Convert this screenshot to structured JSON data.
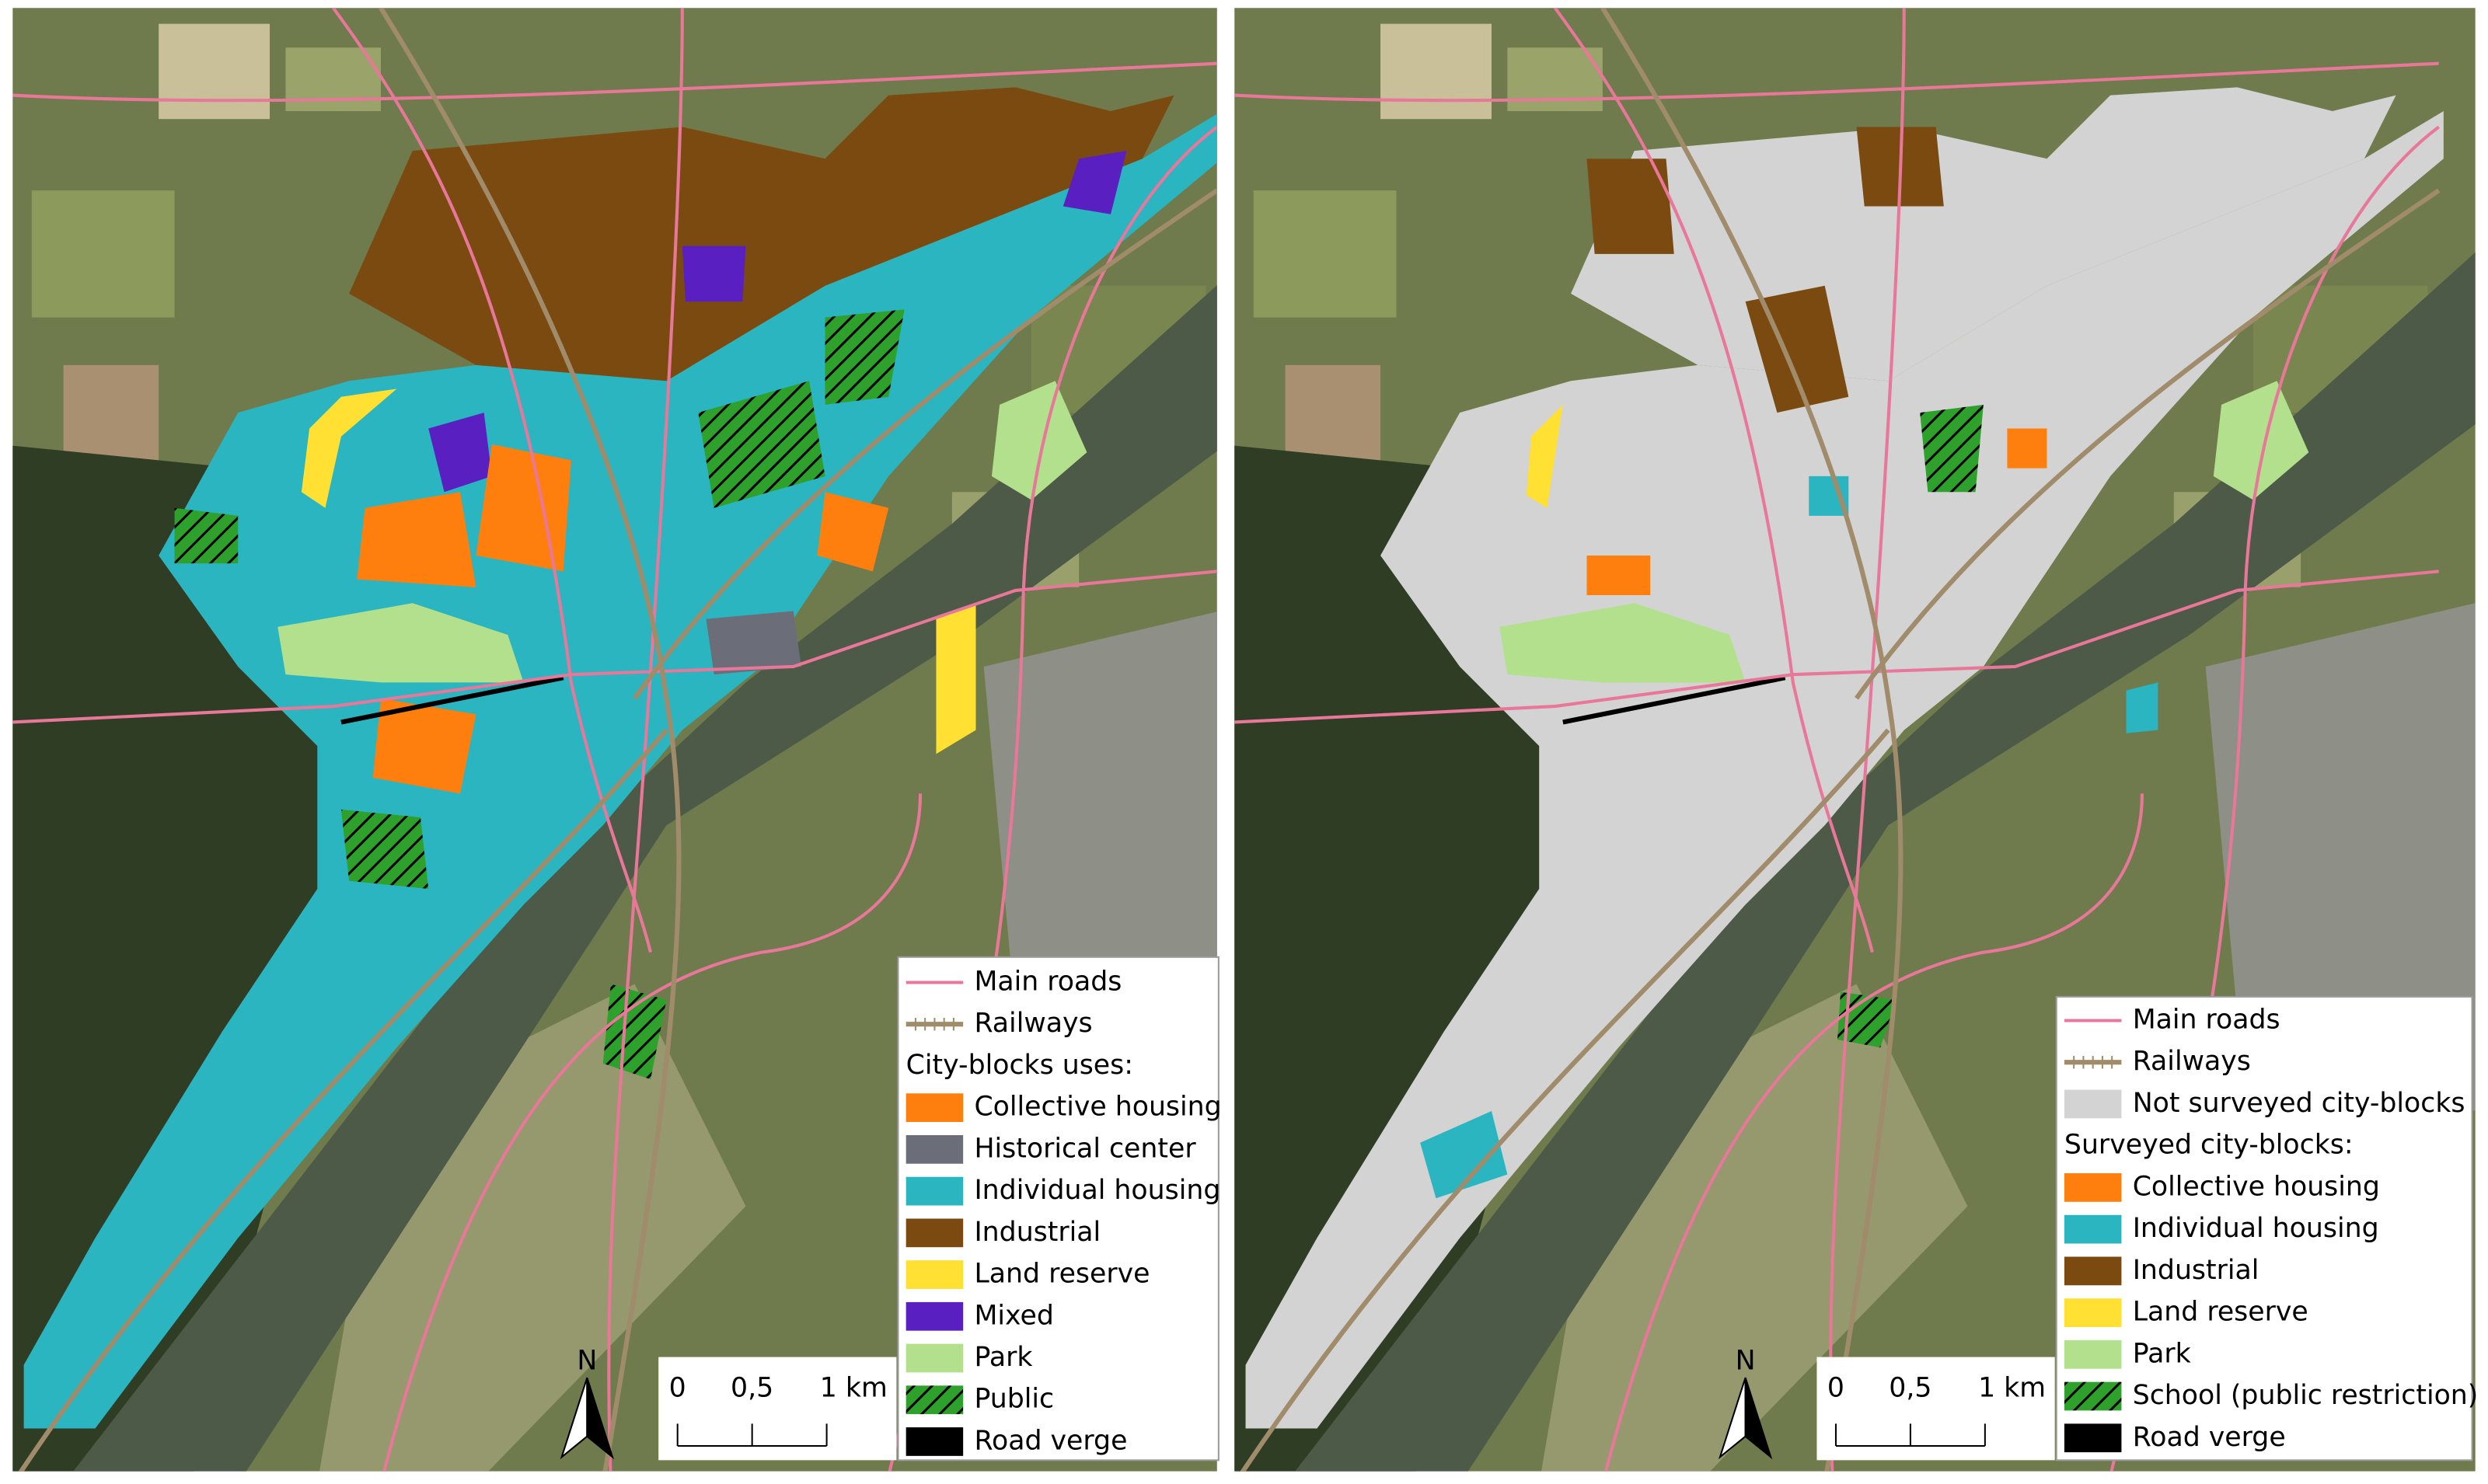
{
  "panels": [
    {
      "legend": {
        "lines": [
          {
            "label": "Main roads",
            "color": "#e8779a"
          },
          {
            "label": "Railways",
            "color": "#a08b6a"
          }
        ],
        "heading": "City-blocks uses:",
        "classes": [
          {
            "label": "Collective housing",
            "color": "#ff7f0e"
          },
          {
            "label": "Historical center",
            "color": "#6b6e78"
          },
          {
            "label": "Individual housing",
            "color": "#2bb5c0"
          },
          {
            "label": "Industrial",
            "color": "#7b4a10"
          },
          {
            "label": "Land reserve",
            "color": "#ffe033"
          },
          {
            "label": "Mixed",
            "color": "#5a1fc0"
          },
          {
            "label": "Park",
            "color": "#b3e08c"
          },
          {
            "label": "Public",
            "color": "#2ea02c",
            "hatched": true
          },
          {
            "label": "Road verge",
            "color": "#000000"
          }
        ]
      },
      "scale_bar": {
        "ticks": [
          "0",
          "0,5",
          "1 km"
        ]
      },
      "north_arrow": "N"
    },
    {
      "legend": {
        "lines": [
          {
            "label": "Main roads",
            "color": "#e8779a"
          },
          {
            "label": "Railways",
            "color": "#a08b6a"
          }
        ],
        "unsurveyed": {
          "label": "Not surveyed city-blocks",
          "color": "#d3d3d3"
        },
        "heading": "Surveyed city-blocks:",
        "classes": [
          {
            "label": "Collective housing",
            "color": "#ff7f0e"
          },
          {
            "label": "Individual housing",
            "color": "#2bb5c0"
          },
          {
            "label": "Industrial",
            "color": "#7b4a10"
          },
          {
            "label": "Land reserve",
            "color": "#ffe033"
          },
          {
            "label": "Park",
            "color": "#b3e08c"
          },
          {
            "label": "School (public restriction)",
            "color": "#2ea02c",
            "hatched": true
          },
          {
            "label": "Road verge",
            "color": "#000000"
          }
        ]
      },
      "scale_bar": {
        "ticks": [
          "0",
          "0,5",
          "1 km"
        ]
      },
      "north_arrow": "N"
    }
  ]
}
